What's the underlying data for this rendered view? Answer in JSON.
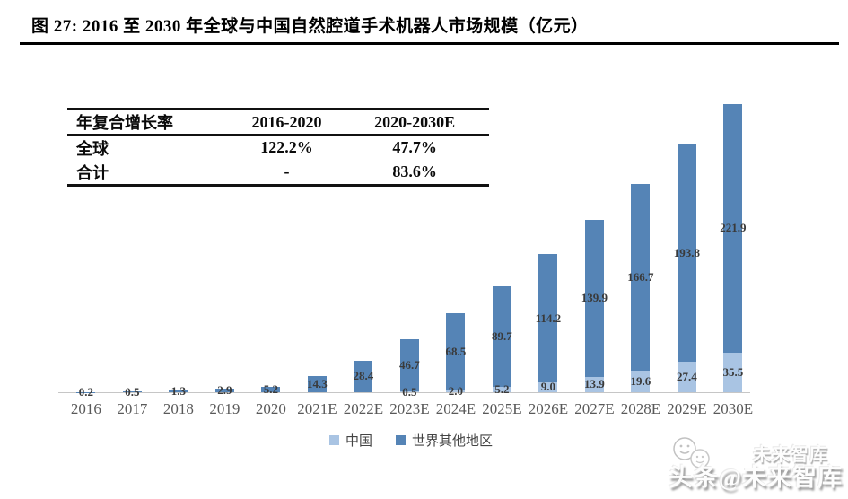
{
  "header": {
    "title": "图 27: 2016 至 2030 年全球与中国自然腔道手术机器人市场规模（亿元）"
  },
  "table": {
    "headers": [
      "年复合增长率",
      "2016-2020",
      "2020-2030E"
    ],
    "rows": [
      [
        "全球",
        "122.2%",
        "47.7%"
      ],
      [
        "合计",
        "-",
        "83.6%"
      ]
    ]
  },
  "chart_data": {
    "type": "bar",
    "stacked": true,
    "title": "2016 至 2030 年全球与中国自然腔道手术机器人市场规模",
    "unit": "亿元",
    "categories": [
      "2016",
      "2017",
      "2018",
      "2019",
      "2020",
      "2021E",
      "2022E",
      "2023E",
      "2024E",
      "2025E",
      "2026E",
      "2027E",
      "2028E",
      "2029E",
      "2030E"
    ],
    "series": [
      {
        "name": "中国",
        "color": "#a9c4e3",
        "values": [
          0,
          0,
          0,
          0,
          0,
          0,
          0,
          0.5,
          2.0,
          5.2,
          9.0,
          13.9,
          19.6,
          27.4,
          35.5
        ]
      },
      {
        "name": "世界其他地区",
        "color": "#5584b6",
        "values": [
          0.2,
          0.5,
          1.3,
          2.9,
          5.2,
          14.3,
          28.4,
          46.7,
          68.5,
          89.7,
          114.2,
          139.9,
          166.7,
          193.8,
          221.9
        ]
      }
    ],
    "xlabel": "",
    "ylabel": "",
    "ylim": [
      0,
      260
    ],
    "grid": false,
    "y_axis_shown": false,
    "legend_position": "bottom",
    "label_style": "segment-centered"
  },
  "watermark": {
    "text": "头条@未来智库",
    "ghost_text": "未来智库"
  }
}
